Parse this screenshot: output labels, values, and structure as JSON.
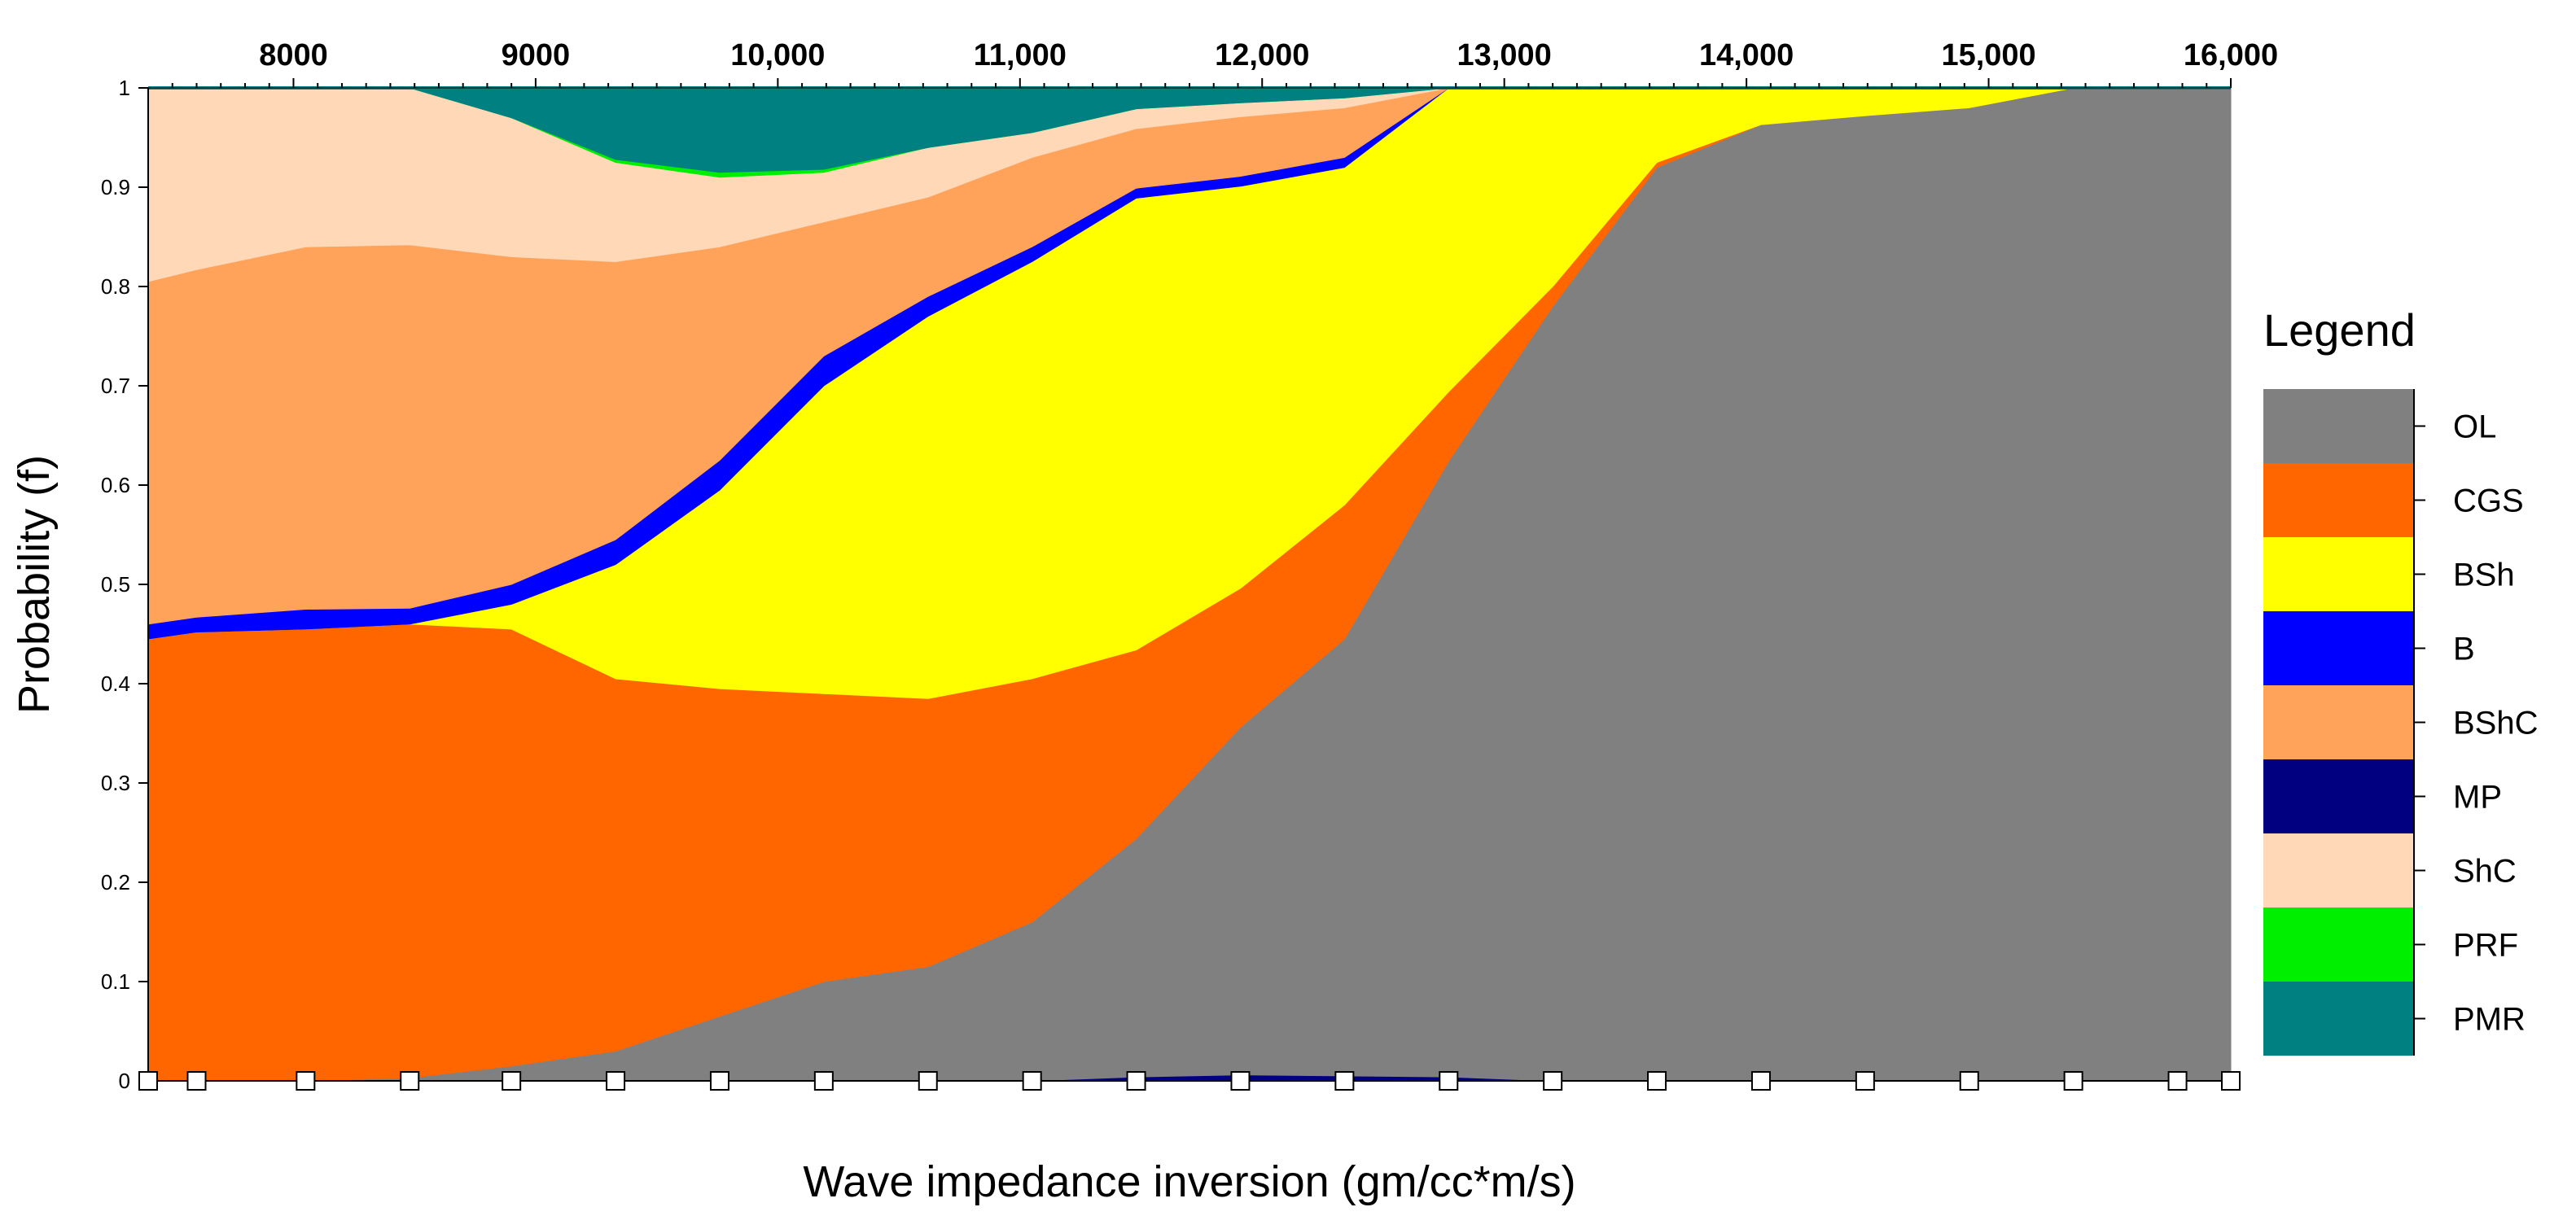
{
  "chart_data": {
    "type": "area",
    "stacked": true,
    "title": "",
    "xlabel": "Wave impedance inversion (gm/cc*m/s)",
    "ylabel": "Probability (f)",
    "xlim": [
      7400,
      16000
    ],
    "ylim": [
      0,
      1
    ],
    "x_ticks": [
      8000,
      9000,
      10000,
      11000,
      12000,
      13000,
      14000,
      15000,
      16000
    ],
    "x_tick_labels": [
      "8000",
      "9000",
      "10,000",
      "11,000",
      "12,000",
      "13,000",
      "14,000",
      "15,000",
      "16,000"
    ],
    "x_axis_position": "top",
    "y_ticks": [
      0,
      0.1,
      0.2,
      0.3,
      0.4,
      0.5,
      0.6,
      0.7,
      0.8,
      0.9,
      1
    ],
    "y_tick_labels": [
      "0",
      "0.1",
      "0.2",
      "0.3",
      "0.4",
      "0.5",
      "0.6",
      "0.7",
      "0.8",
      "0.9",
      "1"
    ],
    "grid": false,
    "x": [
      7400,
      7600,
      8050,
      8480,
      8900,
      9330,
      9760,
      10190,
      10620,
      11050,
      11480,
      11910,
      12340,
      12770,
      13200,
      13630,
      14060,
      14490,
      14920,
      15350,
      15780,
      16000
    ],
    "sample_markers": [
      7400,
      7600,
      8050,
      8480,
      8900,
      9330,
      9760,
      10190,
      10620,
      11050,
      11480,
      11910,
      12340,
      12770,
      13200,
      13630,
      14060,
      14490,
      14920,
      15350,
      15780,
      16000
    ],
    "series": [
      {
        "name": "MP",
        "color": "#000080",
        "values": [
          0,
          0,
          0,
          0,
          0,
          0,
          0,
          0,
          0,
          0,
          0.004,
          0.006,
          0.005,
          0.004,
          0,
          0,
          0,
          0,
          0,
          0,
          0,
          0
        ]
      },
      {
        "name": "OL",
        "color": "#808080",
        "values": [
          0,
          0,
          0,
          0.003,
          0.015,
          0.03,
          0.065,
          0.1,
          0.115,
          0.16,
          0.24,
          0.35,
          0.44,
          0.62,
          0.78,
          0.92,
          0.963,
          0.972,
          0.98,
          1.0,
          1.0,
          1.0
        ]
      },
      {
        "name": "CGS",
        "color": "#FF6600",
        "values": [
          0.445,
          0.452,
          0.455,
          0.457,
          0.44,
          0.375,
          0.33,
          0.29,
          0.27,
          0.245,
          0.19,
          0.14,
          0.135,
          0.07,
          0.02,
          0.005,
          0,
          0,
          0,
          0,
          0,
          0
        ]
      },
      {
        "name": "BSh",
        "color": "#FFFF00",
        "values": [
          0,
          0,
          0,
          0,
          0.025,
          0.115,
          0.2,
          0.31,
          0.385,
          0.42,
          0.455,
          0.405,
          0.34,
          0.31,
          0.2,
          0.075,
          0.037,
          0.028,
          0.02,
          0,
          0,
          0
        ]
      },
      {
        "name": "B",
        "color": "#0000FF",
        "values": [
          0.015,
          0.015,
          0.02,
          0.016,
          0.02,
          0.025,
          0.03,
          0.03,
          0.02,
          0.015,
          0.01,
          0.01,
          0.01,
          0,
          0,
          0,
          0,
          0,
          0,
          0,
          0,
          0
        ]
      },
      {
        "name": "BShC",
        "color": "#FFA25A",
        "values": [
          0.345,
          0.35,
          0.365,
          0.366,
          0.33,
          0.28,
          0.215,
          0.135,
          0.1,
          0.09,
          0.06,
          0.06,
          0.05,
          0.02,
          0,
          0,
          0,
          0,
          0,
          0,
          0,
          0
        ]
      },
      {
        "name": "ShC",
        "color": "#FFD8B8",
        "values": [
          0.195,
          0.183,
          0.16,
          0.158,
          0.14,
          0.1,
          0.07,
          0.05,
          0.05,
          0.025,
          0.02,
          0.014,
          0.01,
          0,
          0,
          0,
          0,
          0,
          0,
          0,
          0,
          0
        ]
      },
      {
        "name": "PRF",
        "color": "#00EE00",
        "values": [
          0,
          0,
          0,
          0,
          0,
          0.003,
          0.005,
          0.003,
          0,
          0,
          0,
          0,
          0,
          0,
          0,
          0,
          0,
          0,
          0,
          0,
          0,
          0
        ]
      },
      {
        "name": "PMR",
        "color": "#008080",
        "values": [
          0,
          0,
          0,
          0,
          0.03,
          0.072,
          0.085,
          0.082,
          0.06,
          0.045,
          0.021,
          0.015,
          0.005,
          0,
          0,
          0,
          0,
          0,
          0,
          0,
          0,
          0
        ]
      }
    ],
    "legend": {
      "title": "Legend",
      "position": "right",
      "entries": [
        {
          "name": "OL",
          "color": "#808080"
        },
        {
          "name": "CGS",
          "color": "#FF6600"
        },
        {
          "name": "BSh",
          "color": "#FFFF00"
        },
        {
          "name": "B",
          "color": "#0000FF"
        },
        {
          "name": "BShC",
          "color": "#FFA25A"
        },
        {
          "name": "MP",
          "color": "#000080"
        },
        {
          "name": "ShC",
          "color": "#FFD8B8"
        },
        {
          "name": "PRF",
          "color": "#00EE00"
        },
        {
          "name": "PMR",
          "color": "#008080"
        }
      ]
    }
  }
}
